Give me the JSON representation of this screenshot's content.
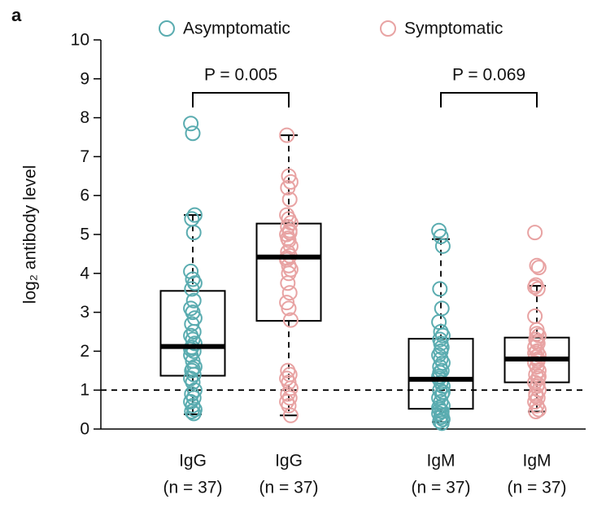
{
  "panel_label": "a",
  "chart_data": {
    "type": "box",
    "ylabel": "log₂ antibody level",
    "ylim": [
      0,
      10
    ],
    "yticks": [
      0,
      1,
      2,
      3,
      4,
      5,
      6,
      7,
      8,
      9,
      10
    ],
    "hline": 1,
    "series": [
      {
        "name": "Asymptomatic",
        "color": "#5aacb0",
        "boxes": [
          {
            "label": "IgG",
            "n_label": "(n = 37)",
            "whislo": 0.38,
            "q1": 1.37,
            "med": 2.12,
            "q3": 3.55,
            "whishi": 5.5,
            "points": [
              7.85,
              7.6,
              5.5,
              5.4,
              5.05,
              4.05,
              3.85,
              3.75,
              3.6,
              3.3,
              3.1,
              3.0,
              2.85,
              2.7,
              2.5,
              2.4,
              2.3,
              2.2,
              2.1,
              2.0,
              1.9,
              1.75,
              1.6,
              1.5,
              1.4,
              1.3,
              1.2,
              1.0,
              0.9,
              0.8,
              0.7,
              0.6,
              0.5,
              0.45,
              0.4,
              2.05,
              1.55
            ]
          },
          {
            "label": "IgM",
            "n_label": "(n = 37)",
            "whislo": 0.18,
            "q1": 0.52,
            "med": 1.28,
            "q3": 2.32,
            "whishi": 4.88,
            "points": [
              5.1,
              4.95,
              4.7,
              3.6,
              3.1,
              2.75,
              2.5,
              2.4,
              2.3,
              2.1,
              1.9,
              1.8,
              1.7,
              1.6,
              1.5,
              1.35,
              1.2,
              1.1,
              1.0,
              0.9,
              0.8,
              0.7,
              0.6,
              0.5,
              0.45,
              0.4,
              0.3,
              0.25,
              0.2,
              0.15,
              1.3,
              2.2,
              0.95,
              1.45,
              0.35,
              0.55,
              2.0
            ]
          }
        ]
      },
      {
        "name": "Symptomatic",
        "color": "#e8a3a3",
        "boxes": [
          {
            "label": "IgG",
            "n_label": "(n = 37)",
            "whislo": 0.35,
            "q1": 2.78,
            "med": 4.42,
            "q3": 5.28,
            "whishi": 7.55,
            "points": [
              7.55,
              6.5,
              6.35,
              6.2,
              5.9,
              5.5,
              5.4,
              5.3,
              5.2,
              5.1,
              5.0,
              4.85,
              4.7,
              4.55,
              4.45,
              4.35,
              4.2,
              4.1,
              3.75,
              3.5,
              3.25,
              3.1,
              2.8,
              1.5,
              1.4,
              1.3,
              1.2,
              1.05,
              0.9,
              0.8,
              0.7,
              0.6,
              0.35,
              4.9,
              5.05,
              4.4,
              4.0
            ]
          },
          {
            "label": "IgM",
            "n_label": "(n = 37)",
            "whislo": 0.45,
            "q1": 1.2,
            "med": 1.8,
            "q3": 2.35,
            "whishi": 3.68,
            "points": [
              5.05,
              4.2,
              4.15,
              3.7,
              3.6,
              2.9,
              2.55,
              2.4,
              2.3,
              2.2,
              2.1,
              2.0,
              1.9,
              1.85,
              1.8,
              1.7,
              1.6,
              1.5,
              1.4,
              1.3,
              1.2,
              1.1,
              1.0,
              0.9,
              0.8,
              0.7,
              0.6,
              0.5,
              0.45,
              1.75,
              1.95,
              2.25,
              1.35,
              0.85,
              1.15,
              3.65,
              2.45
            ]
          }
        ]
      }
    ],
    "comparisons": [
      {
        "text": "P = 0.005"
      },
      {
        "text": "P = 0.069"
      }
    ]
  }
}
